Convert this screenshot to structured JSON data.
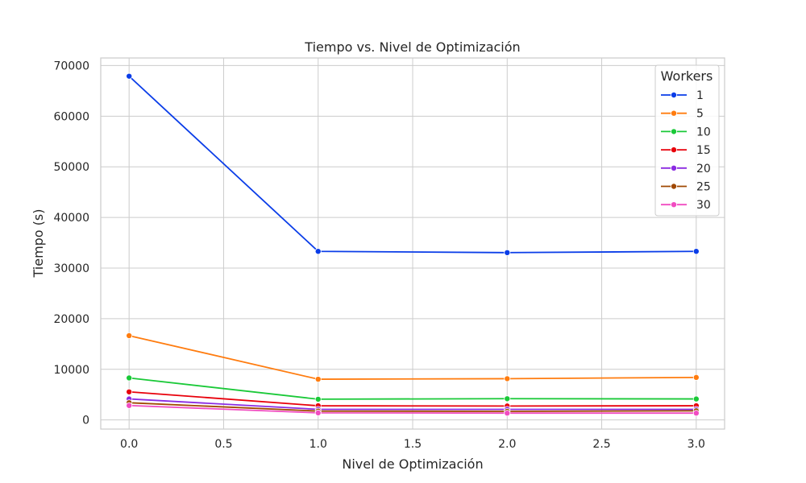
{
  "chart_data": {
    "type": "line",
    "title": "Tiempo vs. Nivel de Optimización",
    "xlabel": "Nivel de Optimización",
    "ylabel": "Tiempo (s)",
    "xlim": [
      -0.15,
      3.15
    ],
    "ylim": [
      -1800,
      71500
    ],
    "xticks": [
      0.0,
      0.5,
      1.0,
      1.5,
      2.0,
      2.5,
      3.0
    ],
    "xtick_labels": [
      "0.0",
      "0.5",
      "1.0",
      "1.5",
      "2.0",
      "2.5",
      "3.0"
    ],
    "yticks": [
      0,
      10000,
      20000,
      30000,
      40000,
      50000,
      60000,
      70000
    ],
    "ytick_labels": [
      "0",
      "10000",
      "20000",
      "30000",
      "40000",
      "50000",
      "60000",
      "70000"
    ],
    "grid": true,
    "legend": {
      "title": "Workers",
      "placement": "top-right"
    },
    "x": [
      0.0,
      1.0,
      2.0,
      3.0
    ],
    "series": [
      {
        "name": "1",
        "color": "#0a3de8",
        "values": [
          67900,
          33300,
          33050,
          33300
        ]
      },
      {
        "name": "5",
        "color": "#ff7c0f",
        "values": [
          16650,
          8050,
          8150,
          8400
        ]
      },
      {
        "name": "10",
        "color": "#1ac938",
        "values": [
          8300,
          4100,
          4200,
          4150
        ]
      },
      {
        "name": "15",
        "color": "#e8000b",
        "values": [
          5550,
          2800,
          2750,
          2800
        ]
      },
      {
        "name": "20",
        "color": "#8b2be2",
        "values": [
          4150,
          2100,
          2100,
          2100
        ]
      },
      {
        "name": "25",
        "color": "#9f4800",
        "values": [
          3400,
          1750,
          1700,
          1800
        ]
      },
      {
        "name": "30",
        "color": "#f14cc1",
        "values": [
          2850,
          1400,
          1350,
          1350
        ]
      }
    ]
  }
}
